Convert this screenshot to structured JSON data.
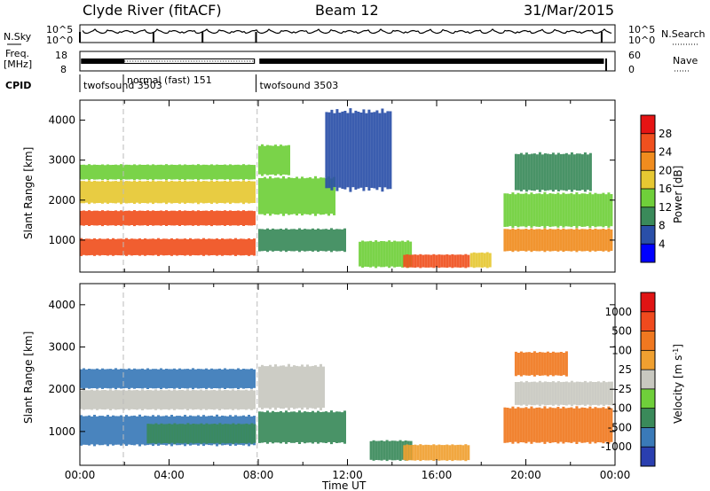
{
  "header": {
    "station": "Clyde River (fitACF)",
    "beam": "Beam 12",
    "date": "31/Mar/2015"
  },
  "strips": {
    "nsky_label": "N.Sky",
    "nsky_ticks": [
      "10^5",
      "10^0"
    ],
    "nsearch_label": "N.Search",
    "nsearch_ticks": [
      "10^5",
      "10^0"
    ],
    "freq_label_line1": "Freq.",
    "freq_label_line2": "[MHz]",
    "freq_ticks": [
      "18",
      "8"
    ],
    "nave_label": "Nave",
    "nave_ticks": [
      "60",
      "0"
    ],
    "cpid_label": "CPID",
    "cpid_segments": [
      {
        "label": "twofsound 3503",
        "start_h": 0.0,
        "end_h": 1.95
      },
      {
        "label": "normal (fast) 151",
        "start_h": 1.95,
        "end_h": 7.9
      },
      {
        "label": "twofsound 3503",
        "start_h": 7.9,
        "end_h": 24.0
      }
    ]
  },
  "chart_data": [
    {
      "type": "heatmap",
      "panel": "power",
      "ylabel": "Slant Range [km]",
      "xlabel": "",
      "xlim_hours": [
        0,
        24
      ],
      "ylim": [
        200,
        4500
      ],
      "yticks": [
        1000,
        2000,
        3000,
        4000
      ],
      "colorbar": {
        "label": "Power [dB]",
        "ticks": [
          "4",
          "8",
          "12",
          "16",
          "20",
          "24",
          "28"
        ],
        "colors": [
          "#0000ff",
          "#2a4fa8",
          "#3a8a5a",
          "#6fcf3a",
          "#e6c832",
          "#f08c1e",
          "#f0501e",
          "#e61414"
        ],
        "range": [
          0,
          30
        ]
      },
      "blobs": [
        {
          "t0": 0.0,
          "t1": 7.9,
          "r0": 600,
          "r1": 1050,
          "value": 26
        },
        {
          "t0": 0.0,
          "t1": 7.9,
          "r0": 1350,
          "r1": 1750,
          "value": 23
        },
        {
          "t0": 0.0,
          "t1": 7.9,
          "r0": 1900,
          "r1": 2500,
          "value": 18
        },
        {
          "t0": 0.0,
          "t1": 7.9,
          "r0": 2500,
          "r1": 2900,
          "value": 12
        },
        {
          "t0": 8.0,
          "t1": 12.0,
          "r0": 700,
          "r1": 1300,
          "value": 9
        },
        {
          "t0": 8.0,
          "t1": 11.5,
          "r0": 1600,
          "r1": 2600,
          "value": 12
        },
        {
          "t0": 8.0,
          "t1": 9.5,
          "r0": 2600,
          "r1": 3400,
          "value": 14
        },
        {
          "t0": 12.5,
          "t1": 15.0,
          "r0": 300,
          "r1": 1000,
          "value": 12
        },
        {
          "t0": 14.5,
          "t1": 17.5,
          "r0": 300,
          "r1": 650,
          "value": 26
        },
        {
          "t0": 17.5,
          "t1": 18.5,
          "r0": 300,
          "r1": 700,
          "value": 15
        },
        {
          "t0": 19.0,
          "t1": 24.0,
          "r0": 700,
          "r1": 1300,
          "value": 20
        },
        {
          "t0": 19.0,
          "t1": 24.0,
          "r0": 1300,
          "r1": 2200,
          "value": 13
        },
        {
          "t0": 19.5,
          "t1": 23.0,
          "r0": 2200,
          "r1": 3200,
          "value": 10
        },
        {
          "t0": 11.0,
          "t1": 14.0,
          "r0": 2200,
          "r1": 4300,
          "value": 6
        }
      ]
    },
    {
      "type": "heatmap",
      "panel": "velocity",
      "ylabel": "Slant Range [km]",
      "xlabel": "Time UT",
      "xlim_hours": [
        0,
        24
      ],
      "ylim": [
        200,
        4500
      ],
      "yticks": [
        1000,
        2000,
        3000,
        4000
      ],
      "xticks": [
        "00:00",
        "04:00",
        "08:00",
        "12:00",
        "16:00",
        "20:00",
        "00:00"
      ],
      "colorbar": {
        "label": "Velocity [m s^-1]",
        "ticks": [
          "1000",
          "500",
          "100",
          "25",
          "-25",
          "-100",
          "-500",
          "-1000"
        ],
        "colors": [
          "#2a3fb0",
          "#3a7ab8",
          "#3a8a5a",
          "#6fcf3a",
          "#c8c8c0",
          "#f0a030",
          "#f07820",
          "#f04a1e",
          "#e01414"
        ],
        "range": [
          -1000,
          1000
        ]
      },
      "blobs": [
        {
          "t0": 0.0,
          "t1": 7.9,
          "r0": 650,
          "r1": 1400,
          "value": 600
        },
        {
          "t0": 0.0,
          "t1": 7.9,
          "r0": 1500,
          "r1": 2000,
          "value": 0
        },
        {
          "t0": 0.0,
          "t1": 7.9,
          "r0": 2000,
          "r1": 2500,
          "value": 550
        },
        {
          "t0": 3.0,
          "t1": 7.9,
          "r0": 700,
          "r1": 1200,
          "value": 120
        },
        {
          "t0": 8.0,
          "t1": 12.0,
          "r0": 700,
          "r1": 1500,
          "value": 130
        },
        {
          "t0": 8.0,
          "t1": 11.0,
          "r0": 1500,
          "r1": 2600,
          "value": 0
        },
        {
          "t0": 13.0,
          "t1": 15.0,
          "r0": 300,
          "r1": 800,
          "value": 120
        },
        {
          "t0": 14.5,
          "t1": 17.5,
          "r0": 300,
          "r1": 700,
          "value": -100
        },
        {
          "t0": 19.0,
          "t1": 24.0,
          "r0": 700,
          "r1": 1600,
          "value": -500
        },
        {
          "t0": 19.5,
          "t1": 24.0,
          "r0": 1600,
          "r1": 2200,
          "value": 0
        },
        {
          "t0": 19.5,
          "t1": 22.0,
          "r0": 2300,
          "r1": 2900,
          "value": -500
        }
      ]
    }
  ]
}
